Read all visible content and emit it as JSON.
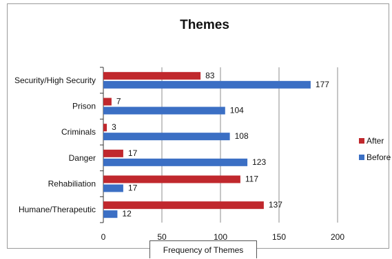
{
  "chart_data": {
    "type": "bar",
    "orientation": "horizontal",
    "title": "Themes",
    "xlabel": "Frequency of Themes",
    "ylabel": "",
    "xlim": [
      0,
      200
    ],
    "xticks": [
      "0",
      "50",
      "100",
      "150",
      "200"
    ],
    "grid": true,
    "legend_position": "right",
    "categories": [
      "Security/High Security",
      "Prison",
      "Criminals",
      "Danger",
      "Rehabiliation",
      "Humane/Therapeutic"
    ],
    "series": [
      {
        "name": "After",
        "color": "#c0282d",
        "values": [
          83,
          7,
          3,
          17,
          117,
          137
        ]
      },
      {
        "name": "Before",
        "color": "#3b6fc4",
        "values": [
          177,
          104,
          108,
          123,
          17,
          12
        ]
      }
    ]
  }
}
